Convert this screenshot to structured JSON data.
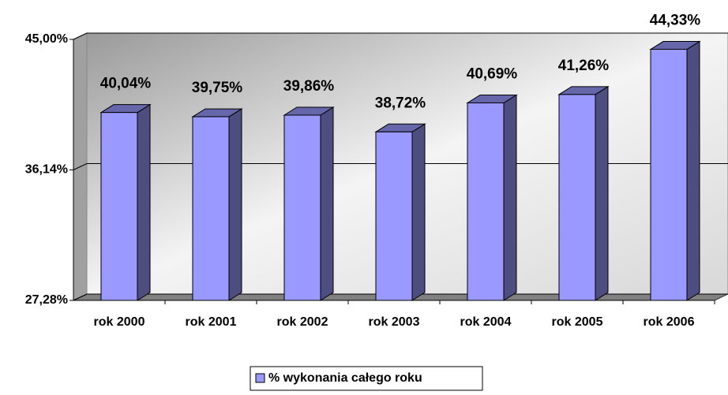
{
  "chart_data": {
    "type": "bar",
    "categories": [
      "rok 2000",
      "rok 2001",
      "rok 2002",
      "rok 2003",
      "rok 2004",
      "rok 2005",
      "rok 2006"
    ],
    "series": [
      {
        "name": "% wykonania całego roku",
        "color": "#9999ff",
        "values": [
          40.04,
          39.75,
          39.86,
          38.72,
          40.69,
          41.26,
          44.33
        ],
        "value_labels": [
          "40,04%",
          "39,75%",
          "39,86%",
          "38,72%",
          "40,69%",
          "41,26%",
          "44,33%"
        ]
      }
    ],
    "ylim": [
      27.28,
      45
    ],
    "yticks": [
      {
        "value": 27.28,
        "label": "27,28%"
      },
      {
        "value": 36.14,
        "label": "36,14%"
      },
      {
        "value": 45,
        "label": "45,00%"
      }
    ],
    "grid": true,
    "legend": "bottom"
  }
}
